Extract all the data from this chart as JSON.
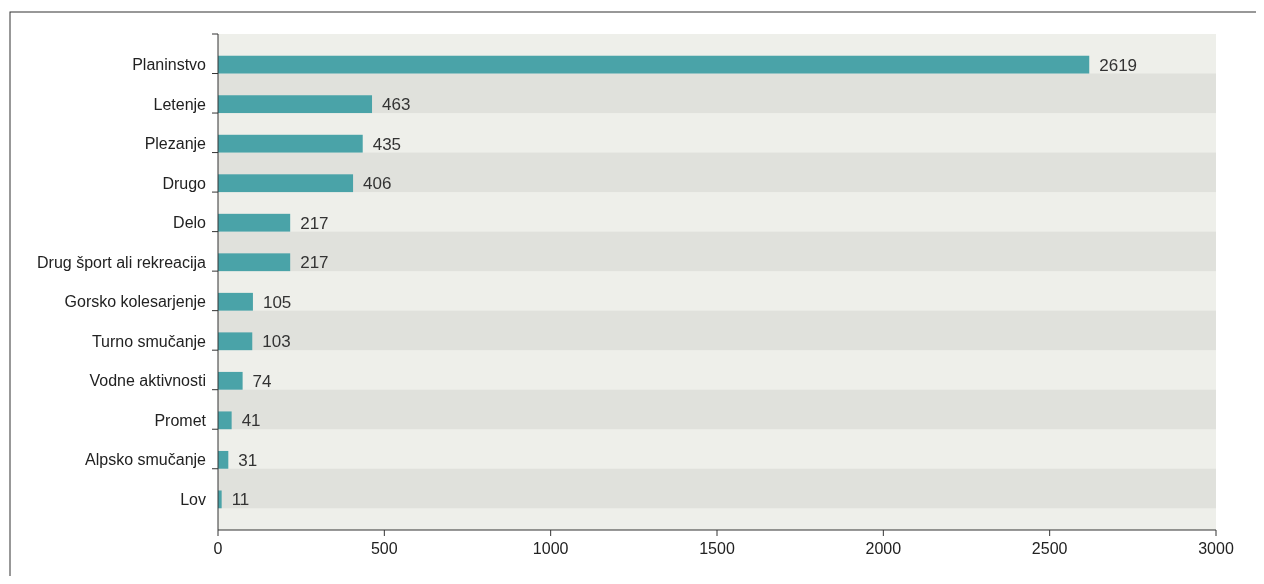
{
  "chart_data": {
    "type": "bar",
    "orientation": "horizontal",
    "categories": [
      "Planinstvo",
      "Letenje",
      "Plezanje",
      "Drugo",
      "Delo",
      "Drug šport ali rekreacija",
      "Gorsko kolesarjenje",
      "Turno smučanje",
      "Vodne aktivnosti",
      "Promet",
      "Alpsko smučanje",
      "Lov"
    ],
    "values": [
      2619,
      463,
      435,
      406,
      217,
      217,
      105,
      103,
      74,
      41,
      31,
      11
    ],
    "color": "#4aa3a8",
    "xlim": [
      0,
      3000
    ],
    "xticks": [
      0,
      500,
      1000,
      1500,
      2000,
      2500,
      3000
    ],
    "data_labels": true,
    "grid": false
  }
}
